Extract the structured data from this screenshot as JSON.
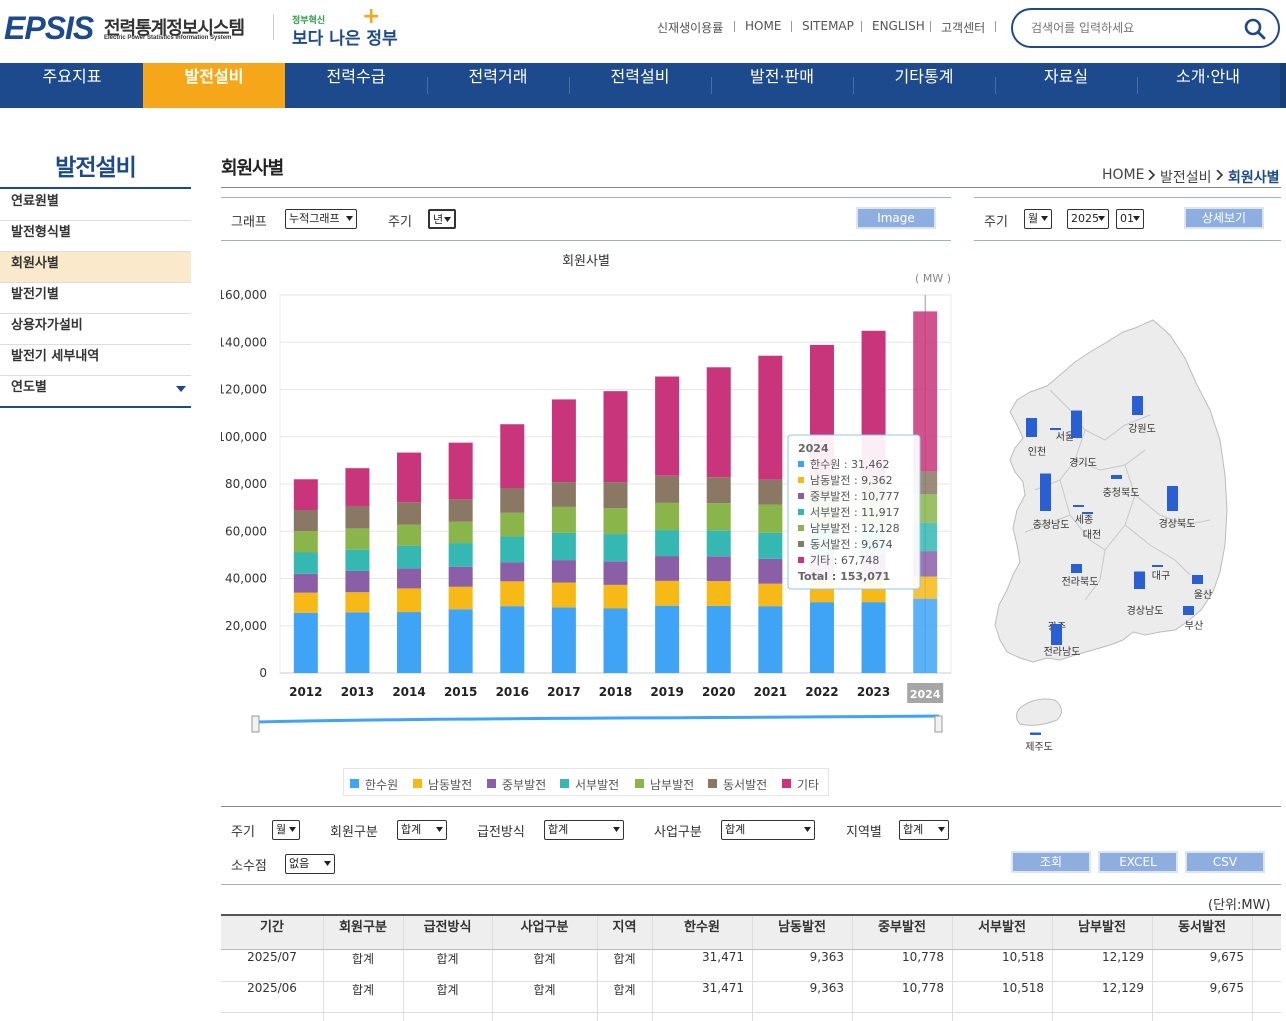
{
  "header": {
    "logo_text": "EPSIS",
    "logo_korean": "전력통계정보시스템",
    "logo_english": "Electric Power Statistics Information System",
    "gov_top": "정부혁신",
    "gov_bottom": "보다 나은 정부",
    "util_links": [
      "신재생이용률",
      "HOME",
      "SITEMAP",
      "ENGLISH",
      "고객센터"
    ],
    "search_placeholder": "검색어를 입력하세요"
  },
  "gnb": {
    "items": [
      "주요지표",
      "발전설비",
      "전력수급",
      "전력거래",
      "전력설비",
      "발전·판매",
      "기타통계",
      "자료실",
      "소개·안내"
    ],
    "active_index": 1
  },
  "lnb": {
    "title": "발전설비",
    "items": [
      "연료원별",
      "발전형식별",
      "회원사별",
      "발전기별",
      "상용자가설비",
      "발전기 세부내역",
      "연도별"
    ],
    "active_index": 2
  },
  "page": {
    "title": "회원사별",
    "breadcrumb": [
      "HOME",
      "발전설비",
      "회원사별"
    ]
  },
  "chart_controls": {
    "graph_label": "그래프",
    "graph_value": "누적그래프",
    "cycle_label": "주기",
    "cycle_value": "년",
    "image_button": "Image"
  },
  "map_controls": {
    "cycle_label": "주기",
    "cycle_value": "월",
    "year_value": "2025",
    "month_value": "01",
    "detail_button": "상세보기"
  },
  "chart_data": {
    "type": "bar",
    "stacked": true,
    "title": "회원사별",
    "unit": "( MW )",
    "categories": [
      "2012",
      "2013",
      "2014",
      "2015",
      "2016",
      "2017",
      "2018",
      "2019",
      "2020",
      "2021",
      "2022",
      "2023",
      "2024"
    ],
    "ylim": [
      0,
      160000
    ],
    "yticks": [
      0,
      20000,
      40000,
      60000,
      80000,
      100000,
      120000,
      140000,
      160000
    ],
    "ytick_labels": [
      "0",
      "20,000",
      "40,000",
      "60,000",
      "80,000",
      "100,000",
      "120,000",
      "140,000",
      "160,000"
    ],
    "highlighted_category": "2024",
    "grid": true,
    "series": [
      {
        "name": "한수원",
        "color": "#3fa4f5",
        "values": [
          25500,
          25700,
          25800,
          27000,
          28300,
          27800,
          27300,
          28500,
          28400,
          28300,
          30000,
          30000,
          31462
        ]
      },
      {
        "name": "남동발전",
        "color": "#f6b915",
        "values": [
          8500,
          8500,
          10000,
          9500,
          10500,
          10500,
          10000,
          10500,
          10500,
          9500,
          9362,
          9362,
          9362
        ]
      },
      {
        "name": "중부발전",
        "color": "#8b5fa8",
        "values": [
          8000,
          9000,
          8500,
          8500,
          8000,
          9500,
          10000,
          10500,
          10500,
          10500,
          10777,
          10777,
          10777
        ]
      },
      {
        "name": "서부발전",
        "color": "#35b8b1",
        "values": [
          9000,
          9000,
          9500,
          10000,
          11000,
          11500,
          11500,
          11000,
          11000,
          11000,
          11917,
          11917,
          11917
        ]
      },
      {
        "name": "남부발전",
        "color": "#8ab54a",
        "values": [
          9000,
          9000,
          9000,
          9000,
          10000,
          11000,
          11000,
          11500,
          11500,
          12000,
          12128,
          12128,
          12128
        ]
      },
      {
        "name": "동서발전",
        "color": "#8a7865",
        "values": [
          9000,
          9500,
          9500,
          9500,
          10500,
          10500,
          11000,
          11500,
          11000,
          10500,
          9674,
          9674,
          9674
        ]
      },
      {
        "name": "기타",
        "color": "#c9357a",
        "values": [
          13000,
          16000,
          21000,
          24000,
          27000,
          35000,
          38500,
          42000,
          46500,
          52500,
          55000,
          61000,
          67748
        ]
      }
    ],
    "tooltip": {
      "year": "2024",
      "rows": [
        {
          "name": "한수원",
          "value": "31,462",
          "color": "#3fa4f5"
        },
        {
          "name": "남동발전",
          "value": "9,362",
          "color": "#f6b915"
        },
        {
          "name": "중부발전",
          "value": "10,777",
          "color": "#8b5fa8"
        },
        {
          "name": "서부발전",
          "value": "11,917",
          "color": "#35b8b1"
        },
        {
          "name": "남부발전",
          "value": "12,128",
          "color": "#8ab54a"
        },
        {
          "name": "동서발전",
          "value": "9,674",
          "color": "#8a7865"
        },
        {
          "name": "기타",
          "value": "67,748",
          "color": "#c9357a"
        }
      ],
      "total_label": "Total",
      "total_value": "153,071"
    }
  },
  "map": {
    "regions": [
      {
        "name": "서울",
        "bar_level": 0.02
      },
      {
        "name": "인천",
        "bar_level": 0.38
      },
      {
        "name": "경기도",
        "bar_level": 0.55
      },
      {
        "name": "강원도",
        "bar_level": 0.38
      },
      {
        "name": "충청북도",
        "bar_level": 0.08
      },
      {
        "name": "세종",
        "bar_level": 0.02
      },
      {
        "name": "대전",
        "bar_level": 0.02
      },
      {
        "name": "충청남도",
        "bar_level": 0.75
      },
      {
        "name": "경상북도",
        "bar_level": 0.5
      },
      {
        "name": "전라북도",
        "bar_level": 0.18
      },
      {
        "name": "대구",
        "bar_level": 0.03
      },
      {
        "name": "울산",
        "bar_level": 0.18
      },
      {
        "name": "경상남도",
        "bar_level": 0.35
      },
      {
        "name": "부산",
        "bar_level": 0.18
      },
      {
        "name": "광주",
        "bar_level": 0.02
      },
      {
        "name": "전라남도",
        "bar_level": 0.42
      },
      {
        "name": "제주도",
        "bar_level": 0.05
      }
    ],
    "bar_color": "#2a5fd3"
  },
  "filters": {
    "cycle_label": "주기",
    "cycle_value": "월",
    "member_label": "회원구분",
    "member_value": "합계",
    "supply_label": "급전방식",
    "supply_value": "합계",
    "business_label": "사업구분",
    "business_value": "합계",
    "region_label": "지역별",
    "region_value": "합계",
    "decimal_label": "소수점",
    "decimal_value": "없음",
    "search_button": "조회",
    "excel_button": "EXCEL",
    "csv_button": "CSV"
  },
  "table": {
    "unit": "(단위:MW)",
    "headers": [
      "기간",
      "회원구분",
      "급전방식",
      "사업구분",
      "지역",
      "한수원",
      "남동발전",
      "중부발전",
      "서부발전",
      "남부발전",
      "동서발전"
    ],
    "rows": [
      [
        "2025/07",
        "합계",
        "합계",
        "합계",
        "합계",
        "31,471",
        "9,363",
        "10,778",
        "10,518",
        "12,129",
        "9,675"
      ],
      [
        "2025/06",
        "합계",
        "합계",
        "합계",
        "합계",
        "31,471",
        "9,363",
        "10,778",
        "10,518",
        "12,129",
        "9,675"
      ]
    ]
  }
}
